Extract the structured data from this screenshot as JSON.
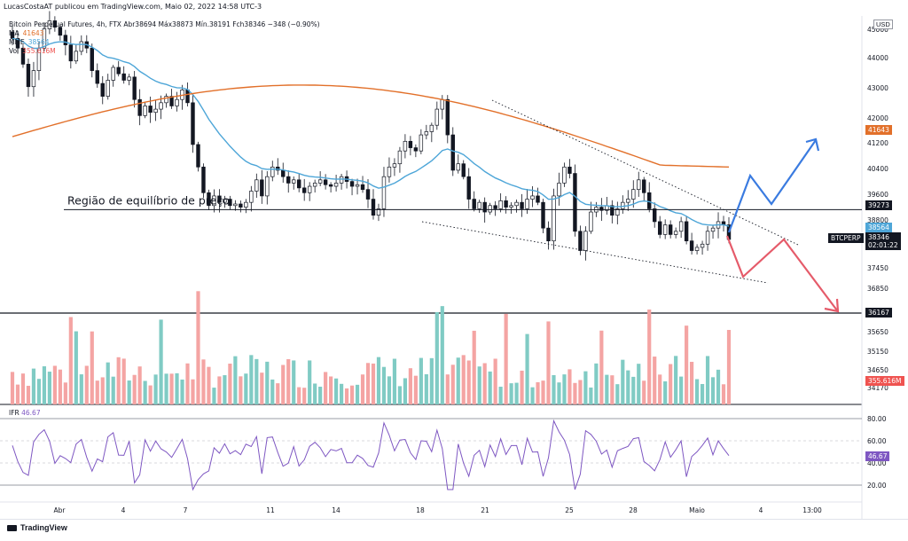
{
  "header": {
    "published_by": "LucasCostaAT publicou em TradingView.com, Maio 02, 2022 14:58 UTC-3"
  },
  "legend": {
    "symbol_line": "Bitcoin Perpetual Futures, 4h, FTX  Abr38694  Máx38873  Mín.38191  Fch38346  −348 (−0.90%)",
    "ma_label": "MA",
    "ma_value": "41643",
    "mme_label": "MME",
    "mme_value": "38564",
    "vol_label": "Vol",
    "vol_value": "355.616M",
    "ifr_label": "IFR",
    "ifr_value": "46.67"
  },
  "currency": "USD",
  "annotation": "Região de equilíbrio de preço",
  "price_axis_ticks": [
    "45000",
    "44000",
    "43000",
    "42000",
    "41200",
    "40400",
    "39600",
    "38800",
    "37450",
    "36850",
    "35650",
    "35150",
    "34650"
  ],
  "price_tags": {
    "ma": "41643",
    "support": "39273",
    "mme": "38564",
    "ticker": "BTCPERP",
    "last": "38346",
    "countdown": "02:01:22",
    "low_line": "36167",
    "vol": "355.616M",
    "vol_partial": "34170"
  },
  "rsi_ticks": [
    "80.00",
    "60.00",
    "40.00",
    "20.00"
  ],
  "rsi_tag": "46.67",
  "time_axis": [
    "Abr",
    "4",
    "7",
    "11",
    "14",
    "18",
    "21",
    "25",
    "28",
    "Maio",
    "4",
    "13:00"
  ],
  "footer": {
    "brand": "TradingView"
  },
  "colors": {
    "up": "#26a69a",
    "down": "#ef5350",
    "ma": "#e2702a",
    "mme": "#4ea6d8",
    "vol_up": "#80cbc4",
    "vol_down": "#f4a4a3",
    "rsi": "#7e57c2",
    "blue_arrow": "#3a7be0",
    "red_arrow": "#e55b6a"
  },
  "chart_data": {
    "type": "candlestick",
    "timeframe": "4h",
    "ylim": [
      36000,
      45300
    ],
    "close": [
      44600,
      44300,
      43800,
      43100,
      43600,
      44300,
      44900,
      45150,
      44950,
      44700,
      44400,
      43900,
      44200,
      44500,
      44300,
      43600,
      43200,
      42800,
      43300,
      43700,
      43500,
      43300,
      43400,
      42700,
      42200,
      42500,
      42300,
      42400,
      42600,
      42800,
      42500,
      42700,
      43000,
      42600,
      41300,
      40600,
      39800,
      39400,
      39700,
      39500,
      39600,
      39400,
      39450,
      39350,
      39500,
      39850,
      40200,
      39700,
      40300,
      40600,
      40500,
      40300,
      40100,
      40200,
      39950,
      39800,
      40000,
      40100,
      40200,
      40050,
      40000,
      40100,
      40300,
      40150,
      40000,
      40050,
      39900,
      39600,
      39100,
      39300,
      40300,
      40600,
      40700,
      41100,
      41400,
      41200,
      41100,
      41600,
      41700,
      41900,
      42400,
      42700,
      41600,
      40500,
      40700,
      40300,
      39600,
      39300,
      39500,
      39200,
      39400,
      39300,
      39550,
      39350,
      39400,
      39500,
      39300,
      39600,
      39700,
      39500,
      38700,
      38300,
      39700,
      40100,
      40600,
      40400,
      38600,
      38000,
      38600,
      39200,
      39350,
      39250,
      39400,
      39100,
      39300,
      39500,
      39600,
      39900,
      40200,
      39800,
      39300,
      38900,
      38500,
      38800,
      38500,
      38600,
      38900,
      38300,
      38000,
      38100,
      38200,
      38600,
      38700,
      38900,
      38800,
      38346
    ],
    "ma_period_value": 41643,
    "mme_value": 38564,
    "volume_last": "355.616M",
    "rsi_last": 46.67,
    "rsi_lines": [
      80,
      60,
      40,
      20
    ],
    "horizontal_levels": [
      39273,
      36167
    ],
    "x_labels": [
      "Abr",
      "4",
      "7",
      "11",
      "14",
      "18",
      "21",
      "25",
      "28",
      "Maio",
      "4",
      "13:00"
    ]
  }
}
